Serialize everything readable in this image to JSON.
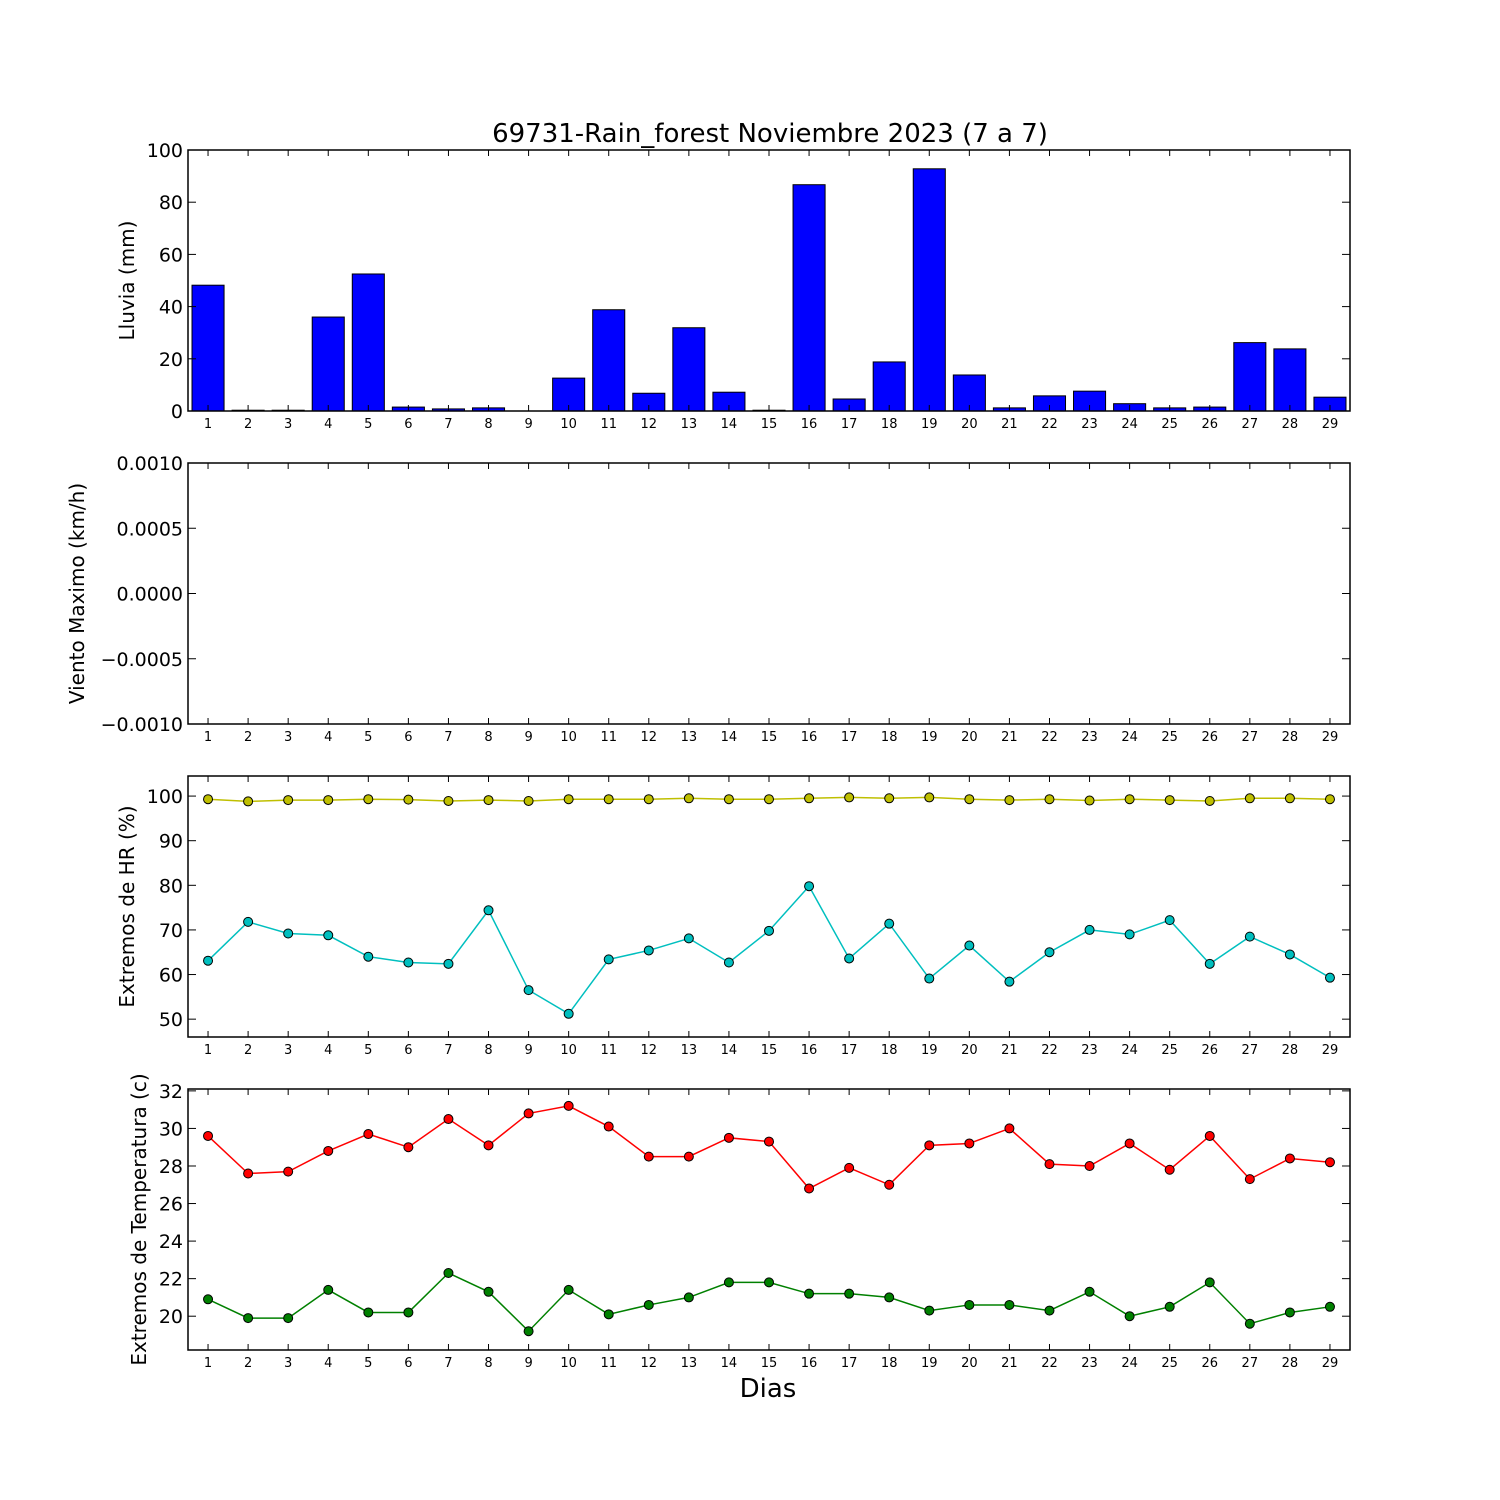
{
  "figure": {
    "title": "69731-Rain_forest Noviembre 2023  (7 a 7)",
    "xlabel": "Dias"
  },
  "chart_data": [
    {
      "type": "bar",
      "ylabel": "Lluvia (mm)",
      "categories": [
        "1",
        "2",
        "3",
        "4",
        "5",
        "6",
        "7",
        "8",
        "9",
        "10",
        "11",
        "12",
        "13",
        "14",
        "15",
        "16",
        "17",
        "18",
        "19",
        "20",
        "21",
        "22",
        "23",
        "24",
        "25",
        "26",
        "27",
        "28",
        "29"
      ],
      "values": [
        48.2,
        0.3,
        0.3,
        36.0,
        52.5,
        1.5,
        0.8,
        1.2,
        0,
        12.6,
        38.8,
        6.8,
        31.9,
        7.2,
        0.3,
        86.7,
        4.6,
        18.8,
        92.8,
        13.8,
        1.2,
        5.8,
        7.6,
        2.8,
        1.2,
        1.5,
        26.2,
        23.8,
        5.3
      ],
      "ylim": [
        0,
        100
      ],
      "yticks": [
        "0",
        "20",
        "40",
        "60",
        "80",
        "100"
      ],
      "color": "#0000ff",
      "grid": false
    },
    {
      "type": "line",
      "ylabel": "Viento Maximo (km/h)",
      "categories": [
        "1",
        "2",
        "3",
        "4",
        "5",
        "6",
        "7",
        "8",
        "9",
        "10",
        "11",
        "12",
        "13",
        "14",
        "15",
        "16",
        "17",
        "18",
        "19",
        "20",
        "21",
        "22",
        "23",
        "24",
        "25",
        "26",
        "27",
        "28",
        "29"
      ],
      "series": [],
      "ylim": [
        -0.001,
        0.001
      ],
      "yticks": [
        "−0.0010",
        "−0.0005",
        "0.0000",
        "0.0005",
        "0.0010"
      ],
      "grid": false
    },
    {
      "type": "line",
      "ylabel": "Extremos de HR (%)",
      "categories": [
        "1",
        "2",
        "3",
        "4",
        "5",
        "6",
        "7",
        "8",
        "9",
        "10",
        "11",
        "12",
        "13",
        "14",
        "15",
        "16",
        "17",
        "18",
        "19",
        "20",
        "21",
        "22",
        "23",
        "24",
        "25",
        "26",
        "27",
        "28",
        "29"
      ],
      "series": [
        {
          "color": "#bfbf00",
          "values": [
            99.3,
            98.8,
            99.1,
            99.1,
            99.3,
            99.2,
            98.9,
            99.1,
            98.9,
            99.3,
            99.3,
            99.3,
            99.5,
            99.3,
            99.3,
            99.5,
            99.7,
            99.5,
            99.7,
            99.3,
            99.1,
            99.3,
            99.0,
            99.3,
            99.1,
            98.9,
            99.5,
            99.5,
            99.3
          ]
        },
        {
          "color": "#00bfbf",
          "values": [
            63.1,
            71.8,
            69.2,
            68.8,
            64.0,
            62.7,
            62.4,
            74.4,
            56.5,
            51.2,
            63.4,
            65.4,
            68.1,
            62.7,
            69.8,
            79.8,
            63.6,
            71.4,
            59.1,
            66.5,
            58.4,
            65.0,
            70.0,
            69.0,
            72.2,
            62.4,
            68.5,
            64.5,
            59.3
          ]
        }
      ],
      "ylim": [
        46,
        104.5
      ],
      "yticks": [
        "50",
        "60",
        "70",
        "80",
        "90",
        "100"
      ],
      "grid": false
    },
    {
      "type": "line",
      "ylabel": "Extremos de Temperatura (c)",
      "categories": [
        "1",
        "2",
        "3",
        "4",
        "5",
        "6",
        "7",
        "8",
        "9",
        "10",
        "11",
        "12",
        "13",
        "14",
        "15",
        "16",
        "17",
        "18",
        "19",
        "20",
        "21",
        "22",
        "23",
        "24",
        "25",
        "26",
        "27",
        "28",
        "29"
      ],
      "series": [
        {
          "color": "#ff0000",
          "values": [
            29.6,
            27.6,
            27.7,
            28.8,
            29.7,
            29.0,
            30.5,
            29.1,
            30.8,
            31.2,
            30.1,
            28.5,
            28.5,
            29.5,
            29.3,
            26.8,
            27.9,
            27.0,
            29.1,
            29.2,
            30.0,
            28.1,
            28.0,
            29.2,
            27.8,
            29.6,
            27.3,
            28.4,
            28.2
          ]
        },
        {
          "color": "#008000",
          "values": [
            20.9,
            19.9,
            19.9,
            21.4,
            20.2,
            20.2,
            22.3,
            21.3,
            19.2,
            21.4,
            20.1,
            20.6,
            21.0,
            21.8,
            21.8,
            21.2,
            21.2,
            21.0,
            20.3,
            20.6,
            20.6,
            20.3,
            21.3,
            20.0,
            20.5,
            21.8,
            19.6,
            20.2,
            20.5
          ]
        }
      ],
      "ylim": [
        18.2,
        32.1
      ],
      "yticks": [
        "20",
        "22",
        "24",
        "26",
        "28",
        "30",
        "32"
      ],
      "grid": false
    }
  ]
}
